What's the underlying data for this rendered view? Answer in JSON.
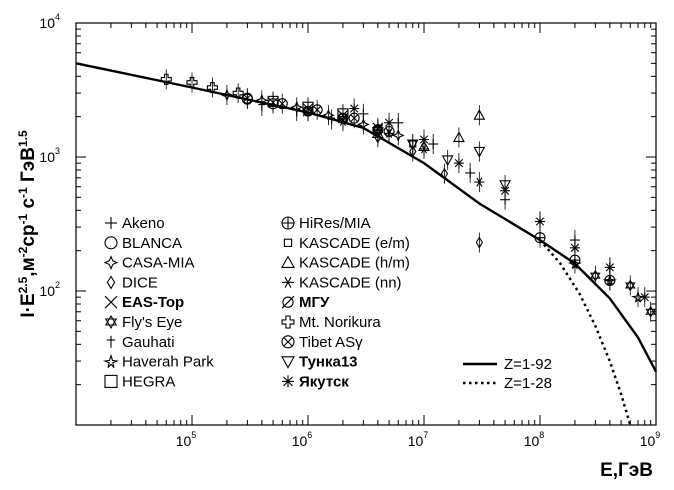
{
  "chart_data": {
    "type": "scatter",
    "title": "",
    "xlabel": "E,ГэВ",
    "ylabel": "I·E^2.5,м^-2 ср^-1 с^-1 ГэВ^1.5",
    "xscale": "log",
    "yscale": "log",
    "xlim": [
      10000,
      1000000000
    ],
    "ylim": [
      10,
      10000
    ],
    "x_ticks": [
      {
        "base": "10",
        "exp": "5",
        "value": 100000
      },
      {
        "base": "10",
        "exp": "6",
        "value": 1000000
      },
      {
        "base": "10",
        "exp": "7",
        "value": 10000000
      },
      {
        "base": "10",
        "exp": "8",
        "value": 100000000
      },
      {
        "base": "10",
        "exp": "9",
        "value": 1000000000
      }
    ],
    "y_ticks": [
      {
        "base": "10",
        "exp": "4",
        "value": 10000
      },
      {
        "base": "10",
        "exp": "3",
        "value": 1000
      },
      {
        "base": "10",
        "exp": "2",
        "value": 100
      }
    ],
    "legend_position": "bottom-left",
    "series": [
      {
        "name": "Akeno",
        "marker": "plus",
        "x": [
          3000000.0,
          6000000.0,
          12000000.0,
          25000000.0,
          50000000.0,
          100000000.0,
          200000000.0,
          400000000.0
        ],
        "y": [
          2100,
          1800,
          1250,
          760,
          480,
          330,
          240,
          150
        ]
      },
      {
        "name": "BLANCA",
        "marker": "circle",
        "x": [
          300000.0,
          500000.0,
          1000000.0,
          2000000.0,
          4000000.0
        ],
        "y": [
          2700,
          2500,
          2200,
          1950,
          1600
        ]
      },
      {
        "name": "CASA-MIA",
        "marker": "star4",
        "x": [
          200000.0,
          400000.0,
          800000.0,
          1500000.0,
          3000000.0,
          6000000.0
        ],
        "y": [
          2900,
          2650,
          2350,
          2050,
          1750,
          1450
        ]
      },
      {
        "name": "DICE",
        "marker": "diamond",
        "x": [
          4000000.0,
          8000000.0,
          15000000.0,
          30000000.0
        ],
        "y": [
          1400,
          1100,
          750,
          230
        ]
      },
      {
        "name": "EAS-Top",
        "marker": "cross",
        "x": [
          500000.0,
          1000000.0,
          2000000.0,
          4000000.0
        ],
        "y": [
          2550,
          2300,
          2050,
          1650
        ]
      },
      {
        "name": "Fly's Eye",
        "marker": "star6",
        "x": [
          300000000.0,
          600000000.0,
          900000000.0
        ],
        "y": [
          130,
          110,
          70
        ]
      },
      {
        "name": "Gauhati",
        "marker": "dagger",
        "x": [
          400000.0,
          800000.0,
          1600000.0
        ],
        "y": [
          2400,
          2200,
          1900
        ]
      },
      {
        "name": "Haverah Park",
        "marker": "starlong",
        "x": [
          200000000.0,
          400000000.0,
          700000000.0
        ],
        "y": [
          160,
          120,
          90
        ]
      },
      {
        "name": "HEGRA",
        "marker": "square",
        "x": [
          500000.0,
          1000000.0,
          2000000.0
        ],
        "y": [
          2600,
          2350,
          2100
        ]
      },
      {
        "name": "HiRes/MIA",
        "marker": "circleplus",
        "x": [
          100000000.0,
          200000000.0,
          400000000.0
        ],
        "y": [
          250,
          170,
          120
        ]
      },
      {
        "name": "KASCADE (e/m)",
        "marker": "smallsquare",
        "x": [
          1000000.0,
          2000000.0,
          4000000.0,
          8000000.0
        ],
        "y": [
          2200,
          1900,
          1600,
          1250
        ]
      },
      {
        "name": "KASCADE (h/m)",
        "marker": "triangle",
        "x": [
          4000000.0,
          10000000.0,
          20000000.0,
          30000000.0
        ],
        "y": [
          1500,
          1200,
          1400,
          2050
        ]
      },
      {
        "name": "KASCADE (nn)",
        "marker": "asterisk6",
        "x": [
          2000000.0,
          5000000.0,
          10000000.0,
          30000000.0
        ],
        "y": [
          1850,
          1500,
          1150,
          650
        ]
      },
      {
        "name": "МГУ",
        "marker": "slashcircle",
        "x": [
          1000000.0,
          2000000.0,
          4000000.0
        ],
        "y": [
          2200,
          1950,
          1600
        ]
      },
      {
        "name": "Mt. Norikura",
        "marker": "hollowcross",
        "x": [
          60000.0,
          100000.0,
          150000.0,
          250000.0
        ],
        "y": [
          3800,
          3600,
          3300,
          3000
        ]
      },
      {
        "name": "Tibet ASγ",
        "marker": "circletimes",
        "x": [
          300000.0,
          600000.0,
          1200000.0,
          2500000.0,
          5000000.0
        ],
        "y": [
          2750,
          2500,
          2250,
          1950,
          1550
        ]
      },
      {
        "name": "Тунка13",
        "marker": "downtriangle",
        "x": [
          4000000.0,
          8000000.0,
          16000000.0,
          30000000.0,
          50000000.0
        ],
        "y": [
          1550,
          1250,
          950,
          1100,
          620
        ]
      },
      {
        "name": "Якутск",
        "marker": "asterisk",
        "x": [
          2500000.0,
          5000000.0,
          10000000.0,
          20000000.0,
          50000000.0,
          100000000.0,
          200000000.0,
          400000000.0,
          800000000.0
        ],
        "y": [
          2300,
          1800,
          1350,
          900,
          560,
          330,
          210,
          150,
          90
        ]
      }
    ],
    "lines": [
      {
        "name": "Z=1-92",
        "style": "solid",
        "x": [
          10000,
          100000,
          1000000,
          3000000,
          10000000,
          30000000,
          100000000,
          200000000,
          400000000,
          700000000,
          1000000000
        ],
        "y": [
          5000,
          3300,
          2150,
          1650,
          900,
          450,
          240,
          160,
          88,
          45,
          25
        ]
      },
      {
        "name": "Z=1-28",
        "style": "dotted",
        "x": [
          100000000,
          150000000,
          220000000,
          300000000,
          400000000,
          500000000,
          600000000
        ],
        "y": [
          240,
          160,
          95,
          55,
          30,
          17,
          10
        ]
      }
    ]
  }
}
